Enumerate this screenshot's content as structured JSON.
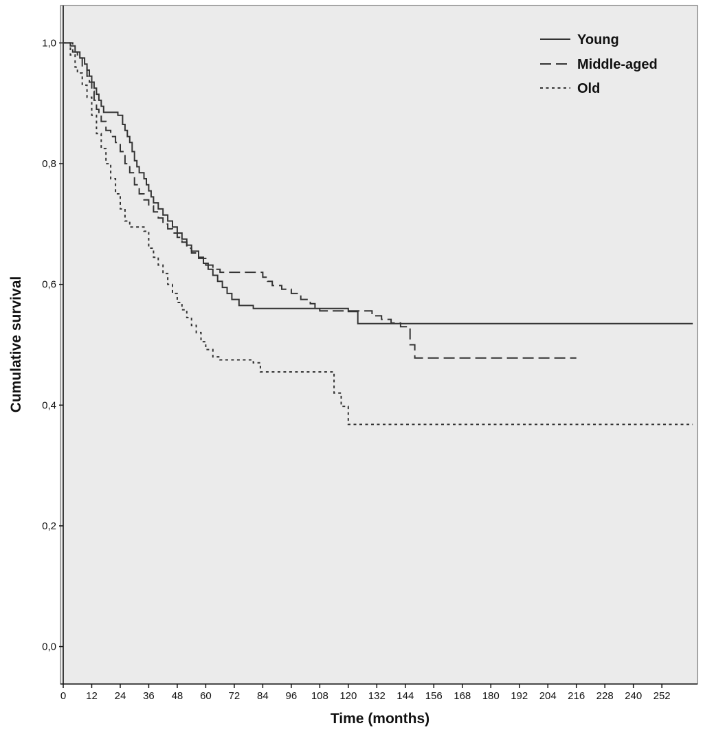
{
  "chart_data": {
    "type": "line",
    "subtype": "kaplan_meier_step",
    "title": "",
    "xlabel": "Time (months)",
    "ylabel": "Cumulative survival",
    "xlim": [
      0,
      267
    ],
    "ylim": [
      0,
      1
    ],
    "grid": false,
    "plot_background": "#ebebeb",
    "frame_color": "#555555",
    "axis_color": "#111111",
    "line_color": "#333333",
    "legend_position": "top-right-inside",
    "x_ticks": [
      0,
      12,
      24,
      36,
      48,
      60,
      72,
      84,
      96,
      108,
      120,
      132,
      144,
      156,
      168,
      180,
      192,
      204,
      216,
      228,
      240,
      252
    ],
    "x_tick_labels": [
      "0",
      "12",
      "24",
      "36",
      "48",
      "60",
      "72",
      "84",
      "96",
      "108",
      "120",
      "132",
      "144",
      "156",
      "168",
      "180",
      "192",
      "204",
      "216",
      "228",
      "240",
      "252"
    ],
    "y_ticks": [
      0.0,
      0.2,
      0.4,
      0.6,
      0.8,
      1.0
    ],
    "y_tick_labels": [
      "0,0",
      "0,2",
      "0,4",
      "0,6",
      "0,8",
      "1,0"
    ],
    "series": [
      {
        "name": "Young",
        "line_style": "solid",
        "points": [
          [
            0,
            1.0
          ],
          [
            3,
            0.995
          ],
          [
            5,
            0.985
          ],
          [
            7,
            0.975
          ],
          [
            9,
            0.965
          ],
          [
            10,
            0.955
          ],
          [
            11,
            0.945
          ],
          [
            12,
            0.935
          ],
          [
            13,
            0.925
          ],
          [
            14,
            0.915
          ],
          [
            15,
            0.905
          ],
          [
            16,
            0.895
          ],
          [
            17,
            0.885
          ],
          [
            23,
            0.88
          ],
          [
            25,
            0.865
          ],
          [
            26,
            0.855
          ],
          [
            27,
            0.845
          ],
          [
            28,
            0.835
          ],
          [
            29,
            0.82
          ],
          [
            30,
            0.805
          ],
          [
            31,
            0.795
          ],
          [
            32,
            0.785
          ],
          [
            34,
            0.775
          ],
          [
            35,
            0.765
          ],
          [
            36,
            0.755
          ],
          [
            37,
            0.745
          ],
          [
            38,
            0.735
          ],
          [
            40,
            0.725
          ],
          [
            42,
            0.715
          ],
          [
            44,
            0.705
          ],
          [
            46,
            0.695
          ],
          [
            48,
            0.685
          ],
          [
            50,
            0.675
          ],
          [
            52,
            0.665
          ],
          [
            54,
            0.655
          ],
          [
            57,
            0.645
          ],
          [
            59,
            0.635
          ],
          [
            61,
            0.625
          ],
          [
            63,
            0.615
          ],
          [
            65,
            0.605
          ],
          [
            67,
            0.595
          ],
          [
            69,
            0.585
          ],
          [
            71,
            0.575
          ],
          [
            74,
            0.565
          ],
          [
            80,
            0.56
          ],
          [
            120,
            0.555
          ],
          [
            124,
            0.535
          ],
          [
            265,
            0.535
          ]
        ]
      },
      {
        "name": "Middle-aged",
        "line_style": "long-dash",
        "points": [
          [
            0,
            1.0
          ],
          [
            4,
            0.985
          ],
          [
            6,
            0.975
          ],
          [
            8,
            0.96
          ],
          [
            10,
            0.945
          ],
          [
            11,
            0.935
          ],
          [
            12,
            0.92
          ],
          [
            13,
            0.905
          ],
          [
            14,
            0.89
          ],
          [
            15,
            0.88
          ],
          [
            16,
            0.87
          ],
          [
            18,
            0.855
          ],
          [
            20,
            0.845
          ],
          [
            22,
            0.835
          ],
          [
            24,
            0.82
          ],
          [
            26,
            0.8
          ],
          [
            28,
            0.785
          ],
          [
            30,
            0.765
          ],
          [
            32,
            0.75
          ],
          [
            34,
            0.74
          ],
          [
            36,
            0.73
          ],
          [
            38,
            0.72
          ],
          [
            40,
            0.71
          ],
          [
            42,
            0.7
          ],
          [
            44,
            0.692
          ],
          [
            46,
            0.685
          ],
          [
            48,
            0.678
          ],
          [
            50,
            0.67
          ],
          [
            52,
            0.66
          ],
          [
            54,
            0.652
          ],
          [
            57,
            0.643
          ],
          [
            60,
            0.632
          ],
          [
            63,
            0.625
          ],
          [
            66,
            0.62
          ],
          [
            84,
            0.612
          ],
          [
            86,
            0.605
          ],
          [
            88,
            0.598
          ],
          [
            92,
            0.592
          ],
          [
            96,
            0.585
          ],
          [
            100,
            0.575
          ],
          [
            104,
            0.568
          ],
          [
            106,
            0.562
          ],
          [
            108,
            0.556
          ],
          [
            130,
            0.548
          ],
          [
            134,
            0.542
          ],
          [
            138,
            0.536
          ],
          [
            142,
            0.53
          ],
          [
            146,
            0.5
          ],
          [
            148,
            0.478
          ],
          [
            216,
            0.478
          ]
        ]
      },
      {
        "name": "Old",
        "line_style": "short-dash",
        "points": [
          [
            0,
            1.0
          ],
          [
            3,
            0.98
          ],
          [
            5,
            0.96
          ],
          [
            6,
            0.95
          ],
          [
            8,
            0.93
          ],
          [
            10,
            0.91
          ],
          [
            12,
            0.88
          ],
          [
            14,
            0.85
          ],
          [
            16,
            0.825
          ],
          [
            18,
            0.8
          ],
          [
            20,
            0.775
          ],
          [
            22,
            0.75
          ],
          [
            24,
            0.725
          ],
          [
            26,
            0.705
          ],
          [
            28,
            0.695
          ],
          [
            34,
            0.688
          ],
          [
            36,
            0.66
          ],
          [
            38,
            0.645
          ],
          [
            40,
            0.632
          ],
          [
            42,
            0.618
          ],
          [
            44,
            0.6
          ],
          [
            46,
            0.585
          ],
          [
            48,
            0.57
          ],
          [
            50,
            0.558
          ],
          [
            52,
            0.545
          ],
          [
            54,
            0.532
          ],
          [
            56,
            0.52
          ],
          [
            58,
            0.505
          ],
          [
            60,
            0.492
          ],
          [
            63,
            0.48
          ],
          [
            66,
            0.475
          ],
          [
            80,
            0.47
          ],
          [
            83,
            0.455
          ],
          [
            110,
            0.455
          ],
          [
            114,
            0.42
          ],
          [
            117,
            0.398
          ],
          [
            120,
            0.368
          ],
          [
            265,
            0.368
          ]
        ]
      }
    ]
  }
}
